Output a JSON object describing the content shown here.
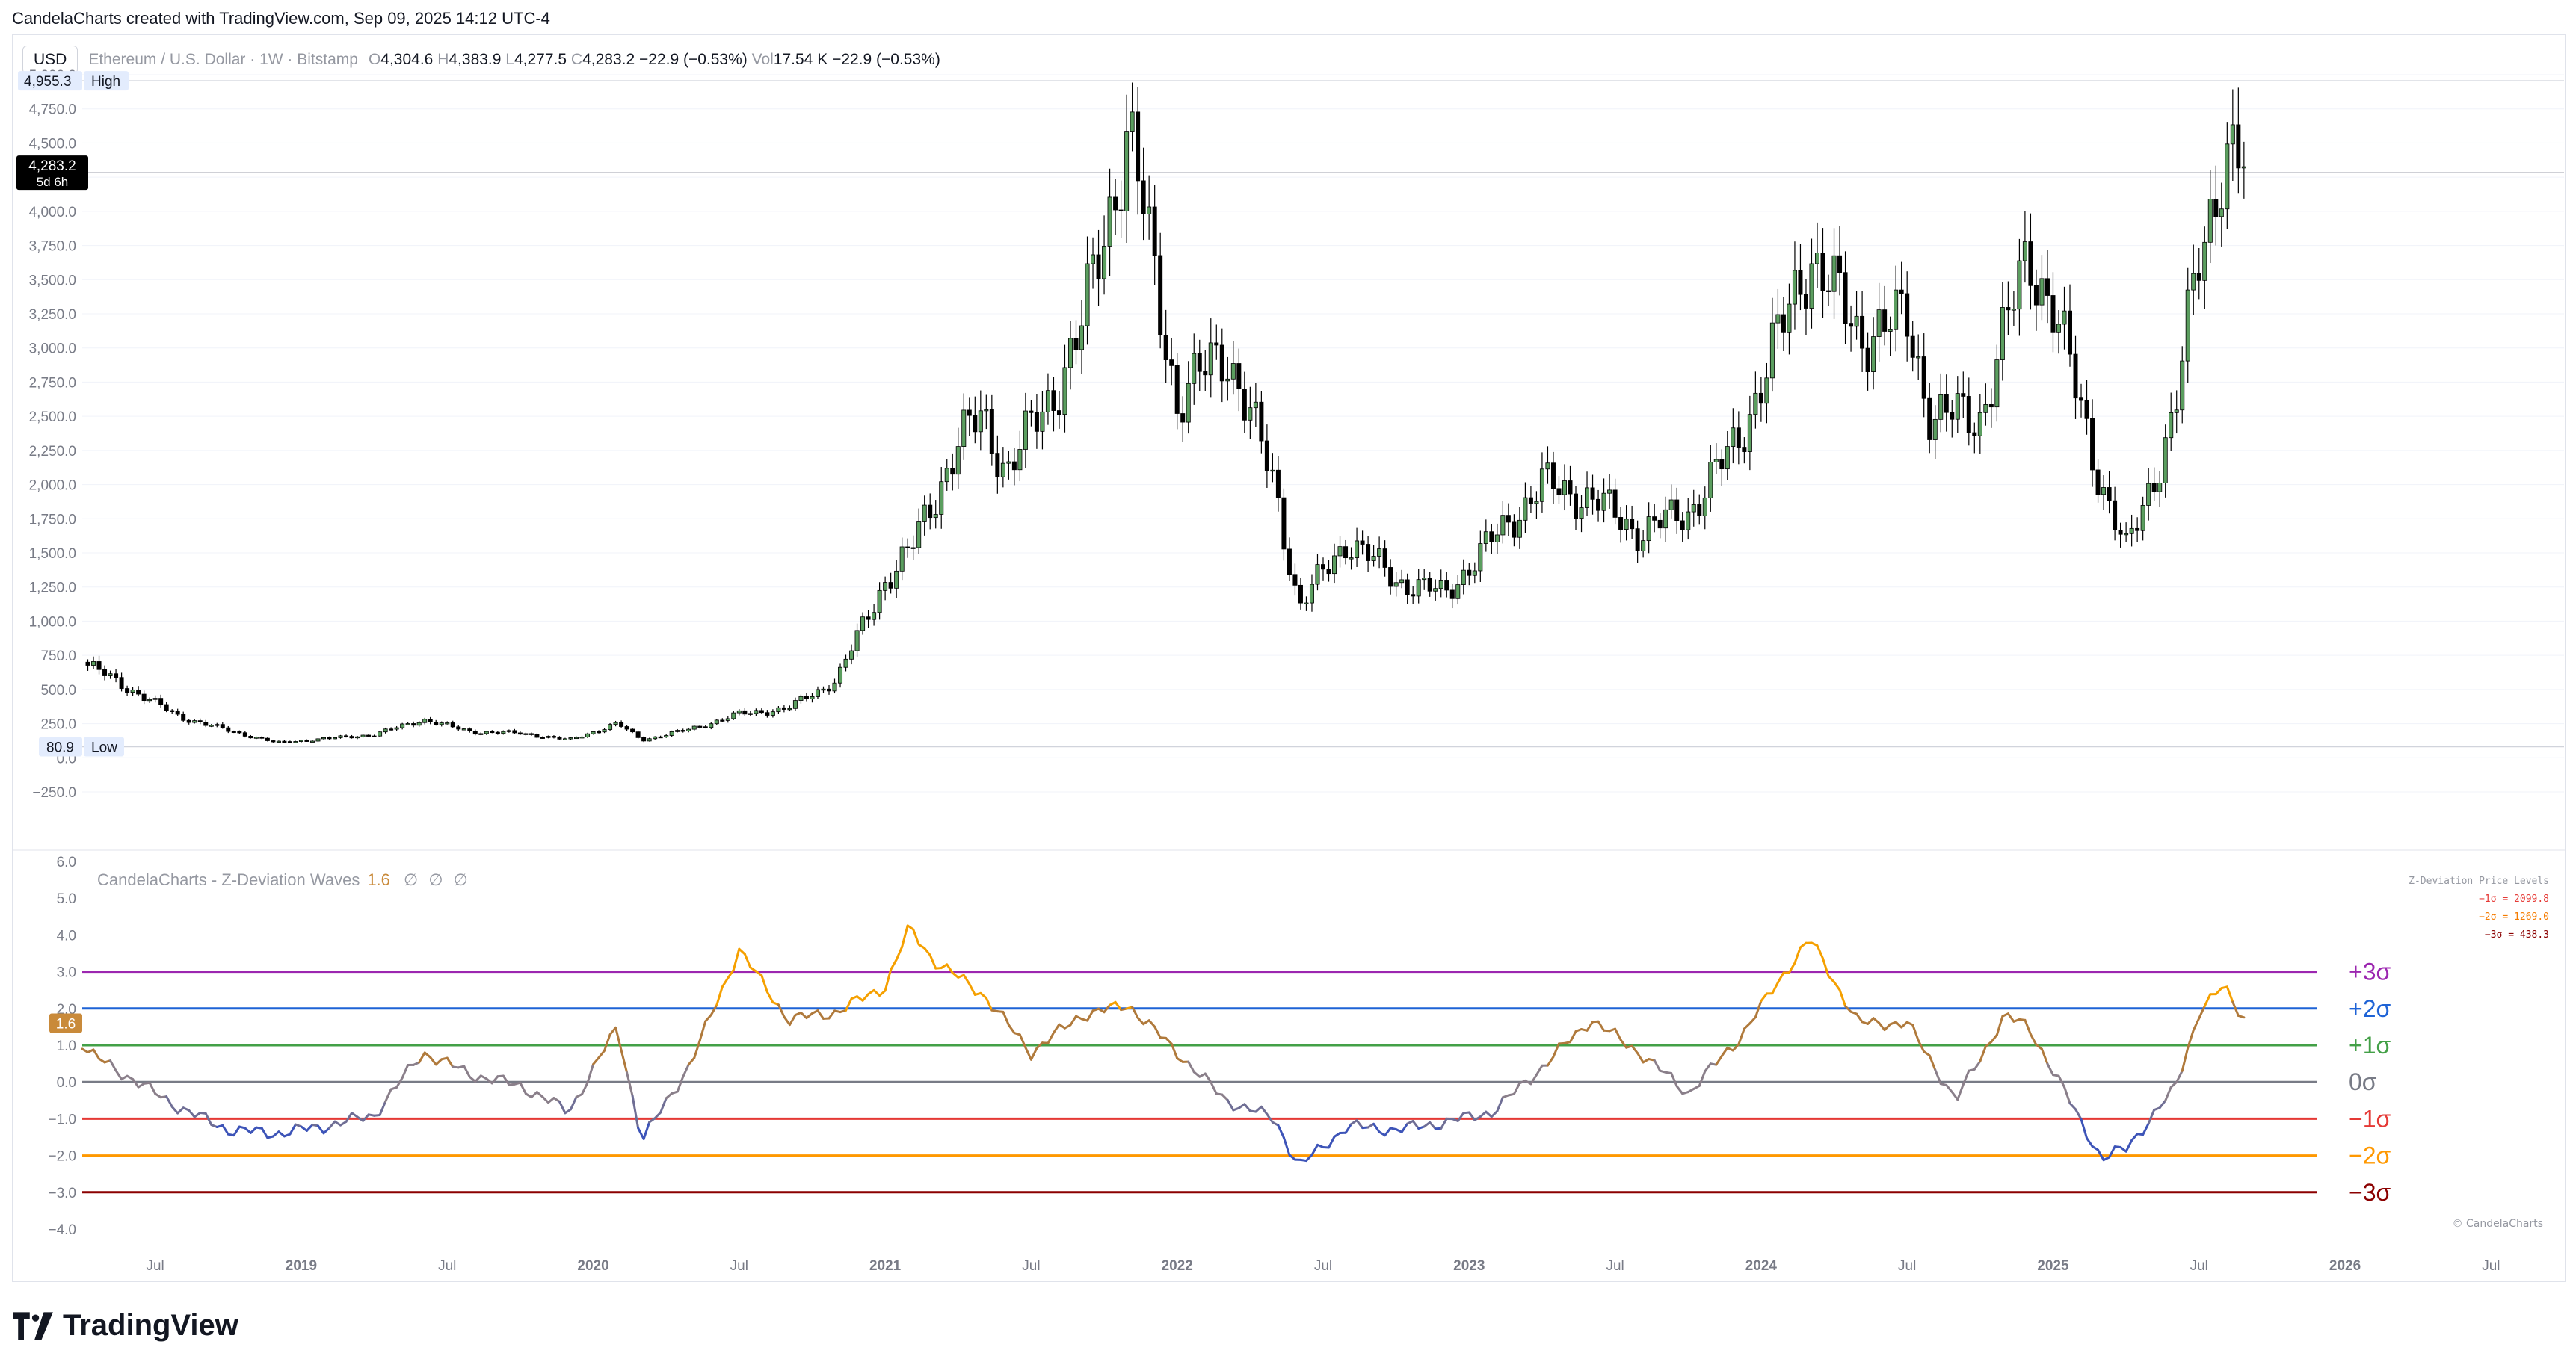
{
  "header": {
    "credit": "CandelaCharts created with TradingView.com, Sep 09, 2025 14:12 UTC-4"
  },
  "symbol_bar": {
    "currency_button": "USD",
    "symbol": "Ethereum / U.S. Dollar · 1W · Bitstamp",
    "open_label": "O",
    "open": "4,304.6",
    "high_label": "H",
    "high": "4,383.9",
    "low_label": "L",
    "low": "4,277.5",
    "close_label": "C",
    "close": "4,283.2",
    "change": "−22.9 (−0.53%)",
    "vol_label": "Vol",
    "vol": "17.54 K",
    "vol_change": "−22.9 (−0.53%)"
  },
  "price_scale": {
    "high_tag": "4,955.3",
    "high_label": "High",
    "low_tag": "80.9",
    "low_label": "Low",
    "last_tag": "4,283.2",
    "last_countdown": "5d 6h",
    "ticks": [
      "5,000.0",
      "4,750.0",
      "4,500.0",
      "4,250.0",
      "4,000.0",
      "3,750.0",
      "3,500.0",
      "3,250.0",
      "3,000.0",
      "2,750.0",
      "2,500.0",
      "2,250.0",
      "2,000.0",
      "1,750.0",
      "1,500.0",
      "1,250.0",
      "1,000.0",
      "750.0",
      "500.0",
      "250.0",
      "0.0",
      "−250.0"
    ]
  },
  "indicator": {
    "title": "CandelaCharts - Z-Deviation Waves",
    "value": "1.6",
    "value_tag": "1.6",
    "icons": [
      "eye-off-icon",
      "eye-off-icon",
      "eye-off-icon"
    ],
    "icon_glyph": "∅",
    "ticks": [
      "6.0",
      "5.0",
      "4.0",
      "3.0",
      "2.0",
      "1.0",
      "0.0",
      "−1.0",
      "−2.0",
      "−3.0",
      "−4.0"
    ],
    "levels_header": "Z-Deviation Price Levels",
    "levels": [
      {
        "text": "−1σ = 2099.8",
        "color": "#e53935"
      },
      {
        "text": "−2σ = 1269.0",
        "color": "#f57c00"
      },
      {
        "text": "−3σ = 438.3",
        "color": "#8b0000"
      }
    ],
    "sigma_lines": [
      {
        "label": "+3σ",
        "value": 3,
        "color": "#9c27b0"
      },
      {
        "label": "+2σ",
        "value": 2,
        "color": "#1e63d6"
      },
      {
        "label": "+1σ",
        "value": 1,
        "color": "#43a047"
      },
      {
        "label": "0σ",
        "value": 0,
        "color": "#787b86"
      },
      {
        "label": "−1σ",
        "value": -1,
        "color": "#e53935"
      },
      {
        "label": "−2σ",
        "value": -2,
        "color": "#ff9800"
      },
      {
        "label": "−3σ",
        "value": -3,
        "color": "#8b0000"
      }
    ],
    "copyright": "© CandelaCharts"
  },
  "time_axis": {
    "labels": [
      "Jul",
      "2019",
      "Jul",
      "2020",
      "Jul",
      "2021",
      "Jul",
      "2022",
      "Jul",
      "2023",
      "Jul",
      "2024",
      "Jul",
      "2025",
      "Jul",
      "2026",
      "Jul"
    ]
  },
  "footer": {
    "brand": "TradingView"
  },
  "colors": {
    "bull": "#5b9e5f",
    "bear": "#000000",
    "background": "#ffffff",
    "grid": "#f0f3fa",
    "axis_text": "#787b86"
  },
  "chart_data": [
    {
      "type": "candlestick",
      "title": "Ethereum / U.S. Dollar · 1W · Bitstamp",
      "x_range": [
        "2018-04",
        "2026-08"
      ],
      "ylim": [
        -250,
        5000
      ],
      "high": 4955.3,
      "low": 80.9,
      "last": 4283.2,
      "series": [
        {
          "name": "ETHUSD weekly close (approx)",
          "x": [
            "2018-04",
            "2018-06",
            "2018-08",
            "2018-10",
            "2018-12",
            "2019-02",
            "2019-04",
            "2019-06",
            "2019-08",
            "2019-10",
            "2019-12",
            "2020-02",
            "2020-03",
            "2020-05",
            "2020-07",
            "2020-09",
            "2020-11",
            "2021-01",
            "2021-02",
            "2021-04",
            "2021-05",
            "2021-06",
            "2021-08",
            "2021-09",
            "2021-11",
            "2022-01",
            "2022-03",
            "2022-05",
            "2022-06",
            "2022-08",
            "2022-10",
            "2022-12",
            "2023-02",
            "2023-04",
            "2023-06",
            "2023-08",
            "2023-10",
            "2023-12",
            "2024-02",
            "2024-03",
            "2024-05",
            "2024-07",
            "2024-08",
            "2024-10",
            "2024-12",
            "2025-01",
            "2025-03",
            "2025-04",
            "2025-06",
            "2025-07",
            "2025-08",
            "2025-09"
          ],
          "values": [
            700,
            500,
            300,
            200,
            110,
            140,
            170,
            280,
            190,
            180,
            130,
            250,
            130,
            210,
            320,
            360,
            570,
            1300,
            1500,
            2300,
            2500,
            2100,
            2700,
            3100,
            4600,
            2600,
            3000,
            2000,
            1100,
            1600,
            1300,
            1200,
            1600,
            2000,
            1900,
            1650,
            1800,
            2300,
            3200,
            3700,
            3100,
            3200,
            2500,
            2500,
            3700,
            3300,
            2000,
            1500,
            2500,
            3700,
            4400,
            4283.2
          ]
        }
      ]
    },
    {
      "type": "line",
      "title": "CandelaCharts - Z-Deviation Waves",
      "ylim": [
        -4,
        6
      ],
      "x": [
        "2018-04",
        "2018-06",
        "2018-08",
        "2018-10",
        "2018-12",
        "2019-02",
        "2019-04",
        "2019-06",
        "2019-08",
        "2019-10",
        "2019-12",
        "2020-02",
        "2020-03",
        "2020-05",
        "2020-07",
        "2020-09",
        "2020-11",
        "2021-01",
        "2021-02",
        "2021-03",
        "2021-05",
        "2021-07",
        "2021-09",
        "2021-11",
        "2022-01",
        "2022-03",
        "2022-05",
        "2022-06",
        "2022-08",
        "2022-10",
        "2022-12",
        "2023-02",
        "2023-04",
        "2023-06",
        "2023-08",
        "2023-10",
        "2023-12",
        "2024-02",
        "2024-03",
        "2024-05",
        "2024-07",
        "2024-09",
        "2024-11",
        "2024-12",
        "2025-02",
        "2025-03",
        "2025-04",
        "2025-06",
        "2025-07",
        "2025-08",
        "2025-09"
      ],
      "values": [
        0.9,
        0.1,
        -0.7,
        -1.3,
        -1.4,
        -1.2,
        -0.9,
        0.8,
        0.2,
        -0.1,
        -0.8,
        1.5,
        -1.6,
        0.5,
        3.6,
        1.7,
        1.9,
        2.6,
        4.2,
        3.3,
        2.4,
        0.8,
        1.8,
        2.1,
        0.8,
        -0.5,
        -1.0,
        -2.3,
        -1.2,
        -1.3,
        -1.1,
        -0.8,
        0.4,
        1.7,
        0.8,
        -0.3,
        1.1,
        3.0,
        3.9,
        1.6,
        1.6,
        -0.5,
        1.8,
        1.5,
        -0.9,
        -2.1,
        -1.8,
        -0.2,
        1.9,
        2.6,
        1.6
      ]
    }
  ]
}
